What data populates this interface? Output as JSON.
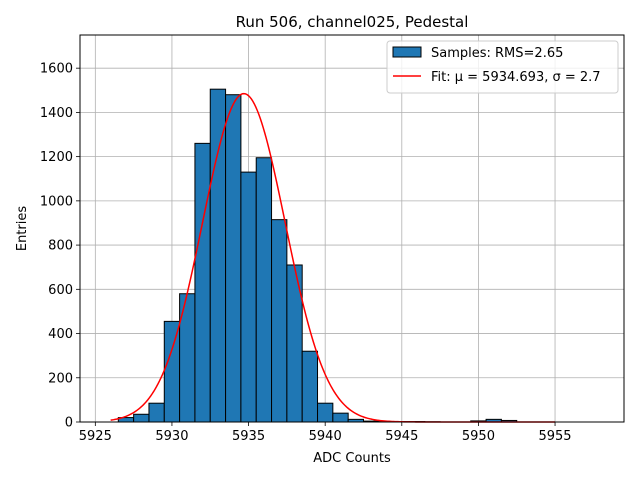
{
  "chart_data": {
    "type": "bar",
    "title": "Run 506, channel025, Pedestal",
    "xlabel": "ADC Counts",
    "ylabel": "Entries",
    "xlim": [
      5924,
      5959.5
    ],
    "ylim": [
      0,
      1750
    ],
    "x_ticks": [
      5925,
      5930,
      5935,
      5940,
      5945,
      5950,
      5955
    ],
    "y_ticks": [
      0,
      200,
      400,
      600,
      800,
      1000,
      1200,
      1400,
      1600
    ],
    "grid": true,
    "legend_position": "top-right",
    "bin_width": 1,
    "bins": [
      {
        "x": 5927,
        "value": 20
      },
      {
        "x": 5928,
        "value": 35
      },
      {
        "x": 5929,
        "value": 85
      },
      {
        "x": 5930,
        "value": 455
      },
      {
        "x": 5931,
        "value": 580
      },
      {
        "x": 5932,
        "value": 1260
      },
      {
        "x": 5933,
        "value": 1505
      },
      {
        "x": 5934,
        "value": 1480
      },
      {
        "x": 5935,
        "value": 1130
      },
      {
        "x": 5936,
        "value": 1195
      },
      {
        "x": 5937,
        "value": 915
      },
      {
        "x": 5938,
        "value": 710
      },
      {
        "x": 5939,
        "value": 320
      },
      {
        "x": 5940,
        "value": 85
      },
      {
        "x": 5941,
        "value": 40
      },
      {
        "x": 5942,
        "value": 12
      },
      {
        "x": 5943,
        "value": 4
      },
      {
        "x": 5944,
        "value": 2
      },
      {
        "x": 5945,
        "value": 2
      },
      {
        "x": 5946,
        "value": 2
      },
      {
        "x": 5947,
        "value": 1
      },
      {
        "x": 5950,
        "value": 5
      },
      {
        "x": 5951,
        "value": 12
      },
      {
        "x": 5952,
        "value": 7
      }
    ],
    "fit": {
      "mu": 5934.693,
      "sigma": 2.7,
      "amplitude": 1485,
      "x_range": [
        5926,
        5955
      ]
    },
    "series": [
      {
        "name": "Samples: RMS=2.65",
        "type": "bar",
        "color": "#1f77b4"
      },
      {
        "name": "Fit: μ = 5934.693, σ = 2.7",
        "type": "line",
        "color": "#ff0000"
      }
    ]
  }
}
